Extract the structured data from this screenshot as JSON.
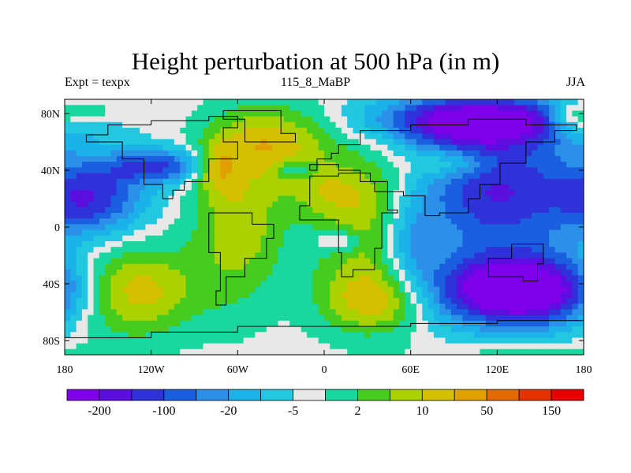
{
  "title": "Height perturbation at 500 hPa (in m)",
  "subtitle_left": "Expt = texpx",
  "subtitle_center": "115_8_MaBP",
  "subtitle_right": "JJA",
  "chart_data": {
    "type": "heatmap",
    "title": "Height perturbation at 500 hPa (in m)",
    "x_ticks": [
      {
        "value": -180,
        "label": "180"
      },
      {
        "value": -120,
        "label": "120W"
      },
      {
        "value": -60,
        "label": "60W"
      },
      {
        "value": 0,
        "label": "0"
      },
      {
        "value": 60,
        "label": "60E"
      },
      {
        "value": 120,
        "label": "120E"
      },
      {
        "value": 180,
        "label": "180"
      }
    ],
    "y_ticks": [
      {
        "value": 80,
        "label": "80N"
      },
      {
        "value": 40,
        "label": "40N"
      },
      {
        "value": 0,
        "label": "0"
      },
      {
        "value": -40,
        "label": "40S"
      },
      {
        "value": -80,
        "label": "80S"
      }
    ],
    "xlim": [
      -180,
      180
    ],
    "ylim": [
      -90,
      90
    ],
    "colorbar": {
      "orientation": "horizontal",
      "colors": [
        "#7f00e8",
        "#5c0ee0",
        "#2e32d8",
        "#1a5fe0",
        "#2b90e8",
        "#1ab2e8",
        "#22c8e0",
        "#e8e8e8",
        "#18d8a0",
        "#46cc1e",
        "#aad200",
        "#d4c000",
        "#e0a000",
        "#e26a00",
        "#e63200",
        "#e80000"
      ],
      "labels": [
        "-200",
        "-100",
        "-20",
        "-5",
        "2",
        "10",
        "50",
        "150"
      ]
    },
    "field_blobs": [
      {
        "x": -135,
        "y": -45,
        "rx": 45,
        "ry": 30,
        "v": 2.5
      },
      {
        "x": -60,
        "y": 5,
        "rx": 30,
        "ry": 55,
        "v": 1.8
      },
      {
        "x": -35,
        "y": 60,
        "rx": 40,
        "ry": 25,
        "v": 2.0
      },
      {
        "x": -75,
        "y": 42,
        "rx": 14,
        "ry": 16,
        "v": 1.6
      },
      {
        "x": 35,
        "y": -52,
        "rx": 35,
        "ry": 22,
        "v": 2.0
      },
      {
        "x": 30,
        "y": 5,
        "rx": 40,
        "ry": 55,
        "v": 1.8
      },
      {
        "x": 0,
        "y": 25,
        "rx": 30,
        "ry": 15,
        "v": 1.0
      },
      {
        "x": 105,
        "y": 75,
        "rx": 70,
        "ry": 18,
        "v": -4.0
      },
      {
        "x": 120,
        "y": 25,
        "rx": 60,
        "ry": 45,
        "v": -3.0
      },
      {
        "x": 135,
        "y": -45,
        "rx": 60,
        "ry": 25,
        "v": -5.0
      },
      {
        "x": -115,
        "y": 43,
        "rx": 35,
        "ry": 12,
        "v": -2.5
      },
      {
        "x": -160,
        "y": 20,
        "rx": 35,
        "ry": 25,
        "v": -2.5
      },
      {
        "x": 10,
        "y": -10,
        "rx": 16,
        "ry": 8,
        "v": -1.5
      },
      {
        "x": -20,
        "y": 40,
        "rx": 12,
        "ry": 6,
        "v": -1.2
      },
      {
        "x": 170,
        "y": 75,
        "rx": 15,
        "ry": 12,
        "v": 1.5
      },
      {
        "x": 90,
        "y": 45,
        "rx": 25,
        "ry": 10,
        "v": 1.2
      },
      {
        "x": -170,
        "y": 80,
        "rx": 25,
        "ry": 10,
        "v": 1.2
      },
      {
        "x": 60,
        "y": -10,
        "rx": 20,
        "ry": 30,
        "v": -1.6
      },
      {
        "x": 135,
        "y": -88,
        "rx": 60,
        "ry": 8,
        "v": 0.5
      }
    ]
  }
}
